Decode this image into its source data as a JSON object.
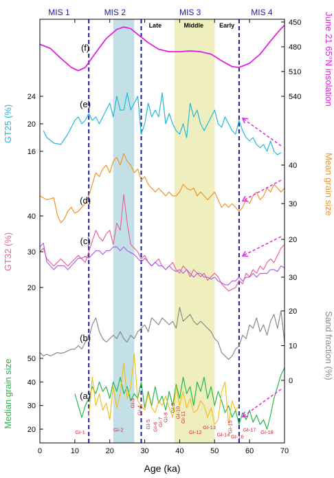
{
  "chart_data": {
    "type": "line",
    "xlabel": "Age (ka)",
    "x_ticks": [
      0,
      10,
      20,
      30,
      40,
      50,
      60,
      70
    ],
    "xlim": [
      0,
      70
    ],
    "mis_labels": [
      {
        "label": "MIS 1",
        "x": 5.5
      },
      {
        "label": "MIS 2",
        "x": 21.5
      },
      {
        "label": "MIS 3",
        "x": 43
      },
      {
        "label": "MIS 4",
        "x": 63.5
      }
    ],
    "mis_boundaries": [
      14,
      29,
      57
    ],
    "shaded_bands": [
      {
        "from": 21,
        "to": 27,
        "color": "#b7dbe0"
      },
      {
        "from": 38.5,
        "to": 50,
        "color": "#ecebb4"
      }
    ],
    "mis3_substages": [
      {
        "label": "Late",
        "x": 33
      },
      {
        "label": "Middle",
        "x": 44
      },
      {
        "label": "Early",
        "x": 53.5
      }
    ],
    "axes": {
      "insolation": {
        "label": "June 21 65°N insolation",
        "ticks": [
          450,
          480,
          510,
          540
        ],
        "color": "#e020e0"
      },
      "gt25": {
        "label": "GT25 (%)",
        "ticks": [
          16,
          20,
          24
        ],
        "color": "#1fb8dc"
      },
      "mean_grain": {
        "label": "Mean grain size",
        "ticks": [
          30,
          40
        ],
        "color": "#f0922e"
      },
      "gt32": {
        "label": "GT32 (%)",
        "ticks": [
          20,
          30,
          40
        ],
        "color": "#e8649a"
      },
      "right_20_30": {
        "ticks": [
          20,
          30
        ],
        "color": "#000"
      },
      "sand": {
        "label": "Sand fraction (%)",
        "ticks": [
          0,
          10,
          20
        ],
        "color": "#8a8a8a"
      },
      "median_grain": {
        "label": "Median grain size",
        "ticks": [
          20,
          30,
          40,
          50
        ],
        "color": "#22b84a"
      }
    },
    "series": [
      {
        "name": "(f)",
        "color": "#e020e0",
        "x": [
          0,
          3,
          6,
          9,
          11,
          13,
          16,
          19,
          22,
          24,
          26,
          28,
          31,
          34,
          37,
          40,
          43,
          46,
          49,
          52,
          55,
          57,
          60,
          63,
          66,
          69,
          70
        ],
        "y": [
          477,
          482,
          494,
          505,
          509,
          505,
          487,
          470,
          459,
          456,
          458,
          465,
          475,
          483,
          486,
          486,
          485,
          486,
          489,
          497,
          504,
          505,
          500,
          489,
          473,
          458,
          454
        ]
      },
      {
        "name": "(e)",
        "color": "#1fb8dc",
        "x": [
          1,
          2,
          4,
          6,
          8,
          9,
          10,
          11,
          12,
          13,
          14,
          15,
          16,
          17,
          18,
          19,
          20,
          21,
          22,
          23,
          24,
          25,
          26,
          27,
          28,
          29,
          30,
          31,
          32,
          33,
          34,
          35,
          36,
          37,
          38,
          39,
          40,
          41,
          42,
          43,
          44,
          45,
          46,
          47,
          48,
          49,
          50,
          51,
          52,
          53,
          54,
          55,
          56,
          57,
          58,
          59,
          60,
          61,
          62,
          63,
          64,
          65,
          66,
          67,
          68,
          69
        ],
        "y": [
          19,
          18,
          17.2,
          17,
          18.5,
          19.5,
          20.5,
          21,
          20,
          20.5,
          21.5,
          20.5,
          21,
          20,
          21,
          22,
          23,
          21,
          24,
          22,
          22,
          24.5,
          22,
          23,
          24,
          18.5,
          20,
          23,
          21,
          22,
          21,
          24.5,
          20,
          21.5,
          20,
          19,
          18.5,
          20,
          18,
          23,
          21,
          22,
          20,
          19,
          20,
          21,
          22,
          20,
          19.5,
          21,
          20,
          19,
          18.5,
          20.5,
          19,
          18,
          17.5,
          18,
          17,
          16.5,
          17,
          16,
          17.5,
          16,
          15.5,
          15.8
        ]
      },
      {
        "name": "(d)",
        "color": "#f0922e",
        "x": [
          0,
          2,
          4,
          5,
          6,
          7,
          8,
          9,
          10,
          11,
          12,
          13,
          14,
          15,
          16,
          17,
          18,
          19,
          20,
          21,
          22,
          23,
          24,
          25,
          26,
          27,
          28,
          29,
          30,
          31,
          32,
          33,
          34,
          35,
          36,
          37,
          38,
          39,
          40,
          41,
          42,
          43,
          44,
          45,
          46,
          47,
          48,
          49,
          50,
          51,
          52,
          53,
          54,
          55,
          56,
          57,
          58,
          59,
          60,
          61,
          62,
          63,
          64,
          65,
          66,
          67,
          68,
          69,
          70
        ],
        "y": [
          32,
          31,
          31.5,
          27,
          25,
          26,
          28,
          29,
          27.5,
          28,
          29,
          30,
          32,
          35,
          38,
          37,
          39,
          40,
          38,
          41,
          42,
          40,
          43,
          41,
          40,
          38,
          39,
          36,
          37,
          35,
          34,
          33,
          34,
          33,
          32,
          33,
          32,
          32,
          33,
          35,
          34,
          33.5,
          34,
          32,
          33,
          32,
          31,
          32,
          33,
          31,
          29,
          30,
          29,
          30,
          29,
          28,
          29,
          31,
          30,
          32,
          33,
          31,
          32,
          34,
          33,
          35,
          34,
          33,
          34
        ]
      },
      {
        "name": "(c) GT32",
        "color": "#e8649a",
        "x": [
          0,
          1,
          2,
          3,
          4,
          5,
          6,
          7,
          8,
          9,
          10,
          11,
          12,
          13,
          14,
          15,
          16,
          17,
          18,
          19,
          20,
          21,
          22,
          23,
          24,
          25,
          26,
          27,
          28,
          29,
          30,
          31,
          32,
          33,
          34,
          35,
          36,
          37,
          38,
          39,
          40,
          41,
          42,
          43,
          44,
          45,
          46,
          47,
          48,
          49,
          50,
          51,
          52,
          53,
          54,
          55,
          56,
          57,
          58,
          59,
          60,
          61,
          62,
          63,
          64,
          65,
          66,
          67,
          68,
          69,
          70
        ],
        "y": [
          30,
          31,
          28,
          27,
          26,
          27,
          28,
          27,
          26,
          27,
          28,
          29,
          28,
          27,
          30,
          33,
          36,
          34,
          33,
          35,
          36,
          32,
          38,
          36,
          46,
          38,
          32,
          31,
          30,
          28,
          29,
          27,
          26,
          27,
          28,
          26,
          25,
          26,
          27,
          25,
          24,
          26,
          25,
          23,
          25,
          24,
          23,
          24,
          22,
          23,
          24,
          23,
          21,
          20,
          19,
          19.5,
          20,
          22,
          21,
          24,
          23,
          25,
          24,
          26,
          25,
          27,
          28,
          27,
          29,
          31,
          32
        ]
      },
      {
        "name": "(c) right",
        "color": "#b05ee8",
        "x": [
          0,
          1,
          2,
          3,
          4,
          5,
          6,
          7,
          8,
          9,
          10,
          11,
          12,
          13,
          14,
          15,
          16,
          17,
          18,
          19,
          20,
          21,
          22,
          23,
          24,
          25,
          26,
          27,
          28,
          29,
          30,
          31,
          32,
          33,
          34,
          35,
          36,
          37,
          38,
          39,
          40,
          41,
          42,
          43,
          44,
          45,
          46,
          47,
          48,
          49,
          50,
          51,
          52,
          53,
          54,
          55,
          56,
          57,
          58,
          59,
          60,
          61,
          62,
          63,
          64,
          65,
          66,
          67,
          68,
          69,
          70
        ],
        "y": [
          22,
          21,
          26,
          27,
          28,
          27,
          27,
          27,
          28,
          27,
          26,
          25,
          25,
          24.5,
          25,
          24,
          23,
          23,
          24,
          23,
          23,
          22,
          22,
          23,
          22,
          23,
          23.5,
          24,
          25,
          26,
          25,
          26,
          27,
          26,
          27,
          27,
          28,
          27,
          28,
          28.5,
          28,
          29,
          28,
          29,
          30,
          29,
          29,
          30,
          30,
          30.5,
          30,
          31,
          31.5,
          32,
          32,
          31,
          31,
          30,
          31,
          30,
          30,
          29,
          30,
          29,
          29,
          29,
          28,
          28,
          28.5,
          27,
          27.5
        ]
      },
      {
        "name": "(b)",
        "color": "#8a8a8a",
        "x": [
          0,
          1,
          2,
          3,
          4,
          5,
          6,
          7,
          8,
          9,
          10,
          11,
          12,
          13,
          14,
          15,
          16,
          17,
          18,
          19,
          20,
          21,
          22,
          23,
          24,
          25,
          26,
          27,
          28,
          29,
          30,
          31,
          32,
          33,
          34,
          35,
          36,
          37,
          38,
          39,
          40,
          41,
          42,
          43,
          44,
          45,
          46,
          47,
          48,
          49,
          50,
          51,
          52,
          53,
          54,
          55,
          56,
          57,
          58,
          59,
          60,
          61,
          62,
          63,
          64,
          65,
          66,
          67,
          68,
          69,
          70
        ],
        "y": [
          8,
          7,
          7.5,
          7,
          7.5,
          8,
          7.8,
          8,
          8.5,
          9,
          9,
          10,
          9,
          11,
          12,
          16,
          18,
          14,
          12,
          11,
          12,
          13,
          12,
          14,
          12,
          11,
          13,
          12,
          14,
          15,
          16,
          14,
          18,
          17,
          16,
          18,
          17,
          16,
          17,
          15,
          21,
          17,
          18,
          19,
          17,
          16,
          17,
          16,
          15,
          14,
          12,
          11,
          8,
          7,
          6,
          7,
          9,
          10,
          13,
          12,
          16,
          15,
          18,
          14,
          16,
          13,
          17,
          19,
          15,
          20,
          11
        ]
      },
      {
        "name": "(a) median",
        "color": "#22b84a",
        "x": [
          10,
          11,
          12,
          13,
          14,
          15,
          16,
          17,
          18,
          19,
          20,
          21,
          22,
          23,
          24,
          25,
          26,
          27,
          28,
          29,
          30,
          31,
          32,
          33,
          34,
          35,
          36,
          37,
          38,
          39,
          40,
          41,
          42,
          43,
          44,
          45,
          46,
          47,
          48,
          49,
          50,
          51,
          52,
          53,
          54,
          55,
          56,
          57,
          58,
          59,
          60,
          61,
          62,
          63,
          64,
          65,
          66,
          67,
          68,
          69,
          70
        ],
        "y": [
          35,
          30,
          25,
          30,
          33,
          38,
          35,
          40,
          36,
          38,
          33,
          40,
          36,
          42,
          35,
          38,
          32,
          35,
          33,
          40,
          29,
          36,
          30,
          38,
          31,
          34,
          28,
          36,
          30,
          39,
          33,
          42,
          35,
          38,
          30,
          40,
          36,
          42,
          33,
          38,
          30,
          36,
          32,
          27,
          30,
          25,
          28,
          22,
          27,
          24,
          28,
          23,
          26,
          22,
          24,
          20,
          26,
          33,
          38,
          43,
          46
        ]
      },
      {
        "name": "(a) yellow",
        "color": "#f0c020",
        "x": [
          14,
          15,
          16,
          17,
          18,
          19,
          20,
          21,
          22,
          23,
          24,
          25,
          26,
          27,
          28,
          29,
          30,
          31,
          32,
          33,
          34,
          35,
          36,
          37,
          38,
          39,
          40,
          41,
          42,
          43,
          44,
          45,
          46,
          47,
          48,
          49,
          50,
          51,
          52,
          53,
          54,
          55,
          56,
          57
        ],
        "y": [
          25,
          42,
          30,
          35,
          28,
          31,
          24,
          38,
          29,
          35,
          48,
          33,
          38,
          52,
          32,
          30,
          28,
          35,
          29,
          27,
          32,
          30,
          34,
          29,
          25,
          38,
          30,
          36,
          29,
          33,
          27,
          28,
          32,
          30,
          25,
          29,
          22,
          24,
          36,
          40,
          22,
          32,
          28,
          30
        ]
      }
    ],
    "gi_labels": [
      {
        "label": "GI-1",
        "x": 11.5,
        "y": 18
      },
      {
        "label": "GI-2",
        "x": 22.5,
        "y": 19
      },
      {
        "label": "GI-3",
        "x": 27,
        "y": 31
      },
      {
        "label": "GI-4",
        "x": 29,
        "y": 28
      },
      {
        "label": "GI-5",
        "x": 31.5,
        "y": 22
      },
      {
        "label": "GI-6",
        "x": 33.5,
        "y": 21
      },
      {
        "label": "GI-7",
        "x": 35,
        "y": 23
      },
      {
        "label": "GI-8",
        "x": 36.5,
        "y": 25
      },
      {
        "label": "GI-9",
        "x": 38.5,
        "y": 29
      },
      {
        "label": "GI-10",
        "x": 40,
        "y": 27
      },
      {
        "label": "GI-11",
        "x": 41.5,
        "y": 25
      },
      {
        "label": "GI-12",
        "x": 44.5,
        "y": 18
      },
      {
        "label": "GI-13",
        "x": 48.5,
        "y": 20
      },
      {
        "label": "GI-14",
        "x": 52.5,
        "y": 17
      },
      {
        "label": "GI-15",
        "x": 55,
        "y": 21
      },
      {
        "label": "GI-16",
        "x": 56.5,
        "y": 16
      },
      {
        "label": "GI-17",
        "x": 60,
        "y": 19
      },
      {
        "label": "GI-18",
        "x": 65,
        "y": 18
      }
    ]
  }
}
